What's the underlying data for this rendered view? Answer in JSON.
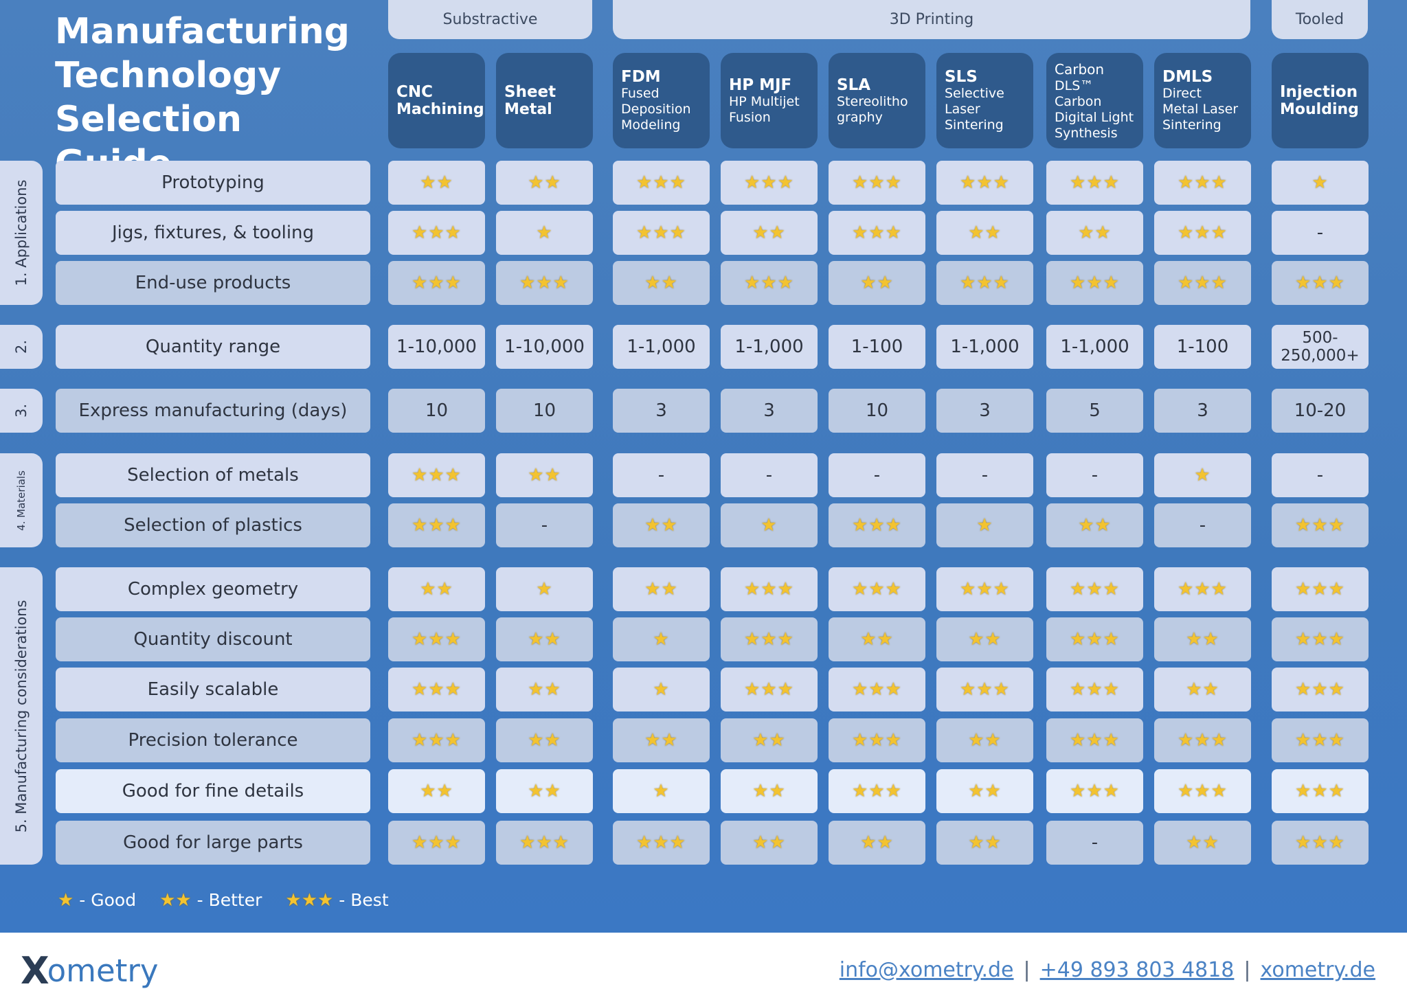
{
  "title": "Manufacturing\nTechnology\nSelection Guide",
  "groups": {
    "subtractive": "Substractive",
    "printing": "3D Printing",
    "tooled": "Tooled"
  },
  "columns": [
    {
      "name": "CNC",
      "sub": "Machining",
      "sub_bold": true
    },
    {
      "name": "Sheet",
      "sub": "Metal",
      "sub_bold": true
    },
    {
      "name": "FDM",
      "sub": "Fused\nDeposition\nModeling",
      "sub_bold": false
    },
    {
      "name": "HP MJF",
      "sub": "HP Multijet\nFusion",
      "sub_bold": false
    },
    {
      "name": "SLA",
      "sub": "Stereolitho\ngraphy",
      "sub_bold": false
    },
    {
      "name": "SLS",
      "sub": "Selective\nLaser\nSintering",
      "sub_bold": false
    },
    {
      "name": "Carbon",
      "sub": "DLS™\nCarbon\nDigital Light\nSynthesis",
      "sub_bold": false,
      "name_regular": true
    },
    {
      "name": "DMLS",
      "sub": "Direct\nMetal Laser\nSintering",
      "sub_bold": false
    },
    {
      "name": "Injection",
      "sub": "Moulding",
      "sub_bold": true
    }
  ],
  "sections": [
    {
      "label": "1. Applications"
    },
    {
      "label": "2."
    },
    {
      "label": "3."
    },
    {
      "label": "4. Materials"
    },
    {
      "label": "5. Manufacturing considerations"
    }
  ],
  "rows": [
    {
      "label": "Prototyping",
      "values": [
        "★★",
        "★★",
        "★★★",
        "★★★",
        "★★★",
        "★★★",
        "★★★",
        "★★★",
        "★"
      ]
    },
    {
      "label": "Jigs, fixtures, & tooling",
      "values": [
        "★★★",
        "★",
        "★★★",
        "★★",
        "★★★",
        "★★",
        "★★",
        "★★★",
        "-"
      ]
    },
    {
      "label": "End-use products",
      "values": [
        "★★★",
        "★★★",
        "★★",
        "★★★",
        "★★",
        "★★★",
        "★★★",
        "★★★",
        "★★★"
      ]
    },
    {
      "label": "Quantity range",
      "values": [
        "1-10,000",
        "1-10,000",
        "1-1,000",
        "1-1,000",
        "1-100",
        "1-1,000",
        "1-1,000",
        "1-100",
        "500-\n250,000+"
      ]
    },
    {
      "label": "Express manufacturing (days)",
      "values": [
        "10",
        "10",
        "3",
        "3",
        "10",
        "3",
        "5",
        "3",
        "10-20"
      ]
    },
    {
      "label": "Selection of metals",
      "values": [
        "★★★",
        "★★",
        "-",
        "-",
        "-",
        "-",
        "-",
        "★",
        "-"
      ]
    },
    {
      "label": "Selection of plastics",
      "values": [
        "★★★",
        "-",
        "★★",
        "★",
        "★★★",
        "★",
        "★★",
        "-",
        "★★★"
      ]
    },
    {
      "label": "Complex geometry",
      "values": [
        "★★",
        "★",
        "★★",
        "★★★",
        "★★★",
        "★★★",
        "★★★",
        "★★★",
        "★★★"
      ]
    },
    {
      "label": "Quantity discount",
      "values": [
        "★★★",
        "★★",
        "★",
        "★★★",
        "★★",
        "★★",
        "★★★",
        "★★",
        "★★★"
      ]
    },
    {
      "label": "Easily scalable",
      "values": [
        "★★★",
        "★★",
        "★",
        "★★★",
        "★★★",
        "★★★",
        "★★★",
        "★★",
        "★★★"
      ]
    },
    {
      "label": "Precision tolerance",
      "values": [
        "★★★",
        "★★",
        "★★",
        "★★",
        "★★★",
        "★★",
        "★★★",
        "★★★",
        "★★★"
      ]
    },
    {
      "label": "Good for fine details",
      "values": [
        "★★",
        "★★",
        "★",
        "★★",
        "★★★",
        "★★",
        "★★★",
        "★★★",
        "★★★"
      ]
    },
    {
      "label": "Good for large parts",
      "values": [
        "★★★",
        "★★★",
        "★★★",
        "★★",
        "★★",
        "★★",
        "-",
        "★★",
        "★★★"
      ]
    }
  ],
  "legend": [
    {
      "stars": "★",
      "text": " - Good"
    },
    {
      "stars": "★★",
      "text": " - Better"
    },
    {
      "stars": "★★★",
      "text": " - Best"
    }
  ],
  "footer": {
    "logo_x": "X",
    "logo_rest": "ometry",
    "email": "info@xometry.de",
    "phone": "+49 893 803 4818",
    "website": "xometry.de",
    "separator": "|"
  }
}
